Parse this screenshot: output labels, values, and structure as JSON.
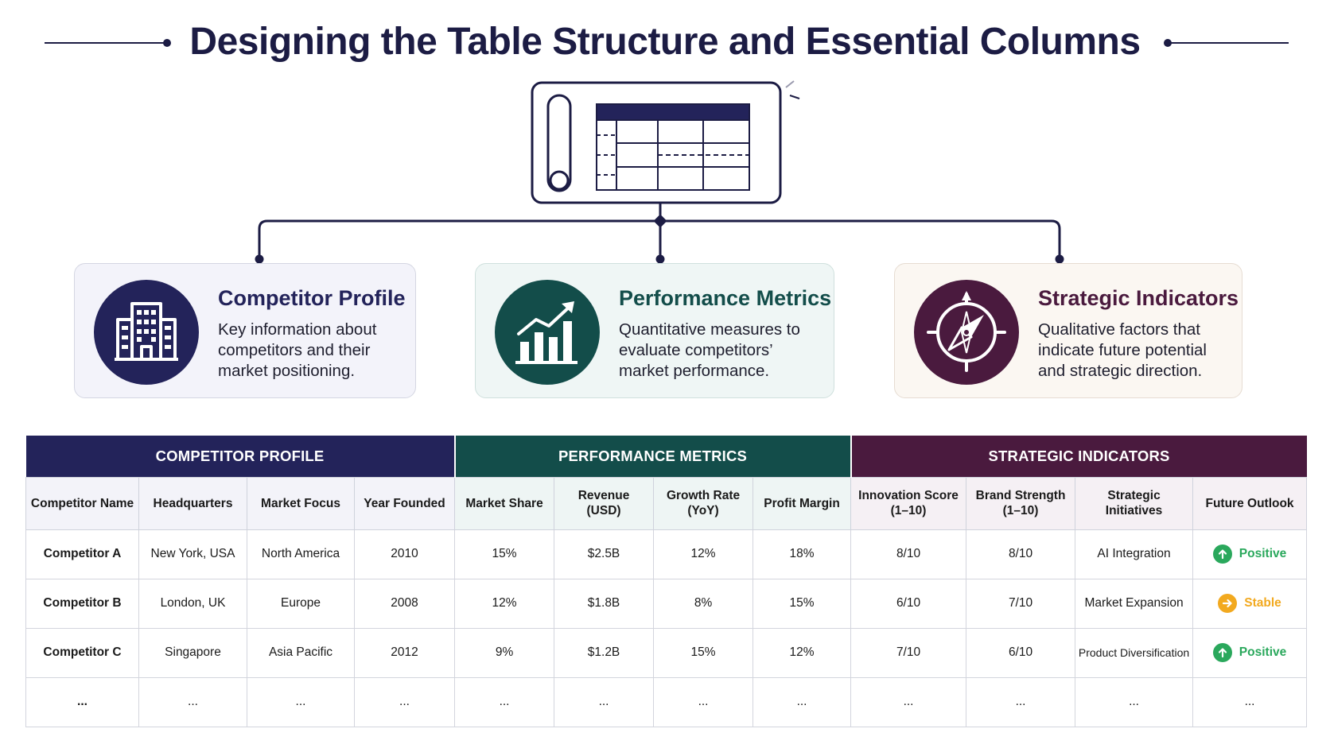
{
  "title": "Designing the Table Structure and Essential Columns",
  "colors": {
    "navy": "#23235a",
    "teal": "#134d4a",
    "plum": "#4a1a3e",
    "positive": "#2aa85c",
    "stable": "#f2a91f"
  },
  "categories": [
    {
      "title": "Competitor Profile",
      "description": "Key information about competitors and their market positioning.",
      "icon": "building-icon"
    },
    {
      "title": "Performance Metrics",
      "description": "Quantitative measures to evaluate competitors’ market performance.",
      "icon": "bar-chart-trend-icon"
    },
    {
      "title": "Strategic Indicators",
      "description": "Qualitative factors that indicate future potential and strategic direction.",
      "icon": "compass-icon"
    }
  ],
  "table": {
    "groups": [
      "COMPETITOR PROFILE",
      "PERFORMANCE METRICS",
      "STRATEGIC INDICATORS"
    ],
    "columns": [
      [
        "Competitor Name"
      ],
      [
        "Headquarters"
      ],
      [
        "Market Focus"
      ],
      [
        "Year Founded"
      ],
      [
        "Market Share"
      ],
      [
        "Revenue",
        "(USD)"
      ],
      [
        "Growth Rate",
        "(YoY)"
      ],
      [
        "Profit Margin"
      ],
      [
        "Innovation Score",
        "(1–10)"
      ],
      [
        "Brand Strength",
        "(1–10)"
      ],
      [
        "Strategic",
        "Initiatives"
      ],
      [
        "Future Outlook"
      ]
    ],
    "rows": [
      [
        "Competitor A",
        "New York, USA",
        "North America",
        "2010",
        "15%",
        "$2.5B",
        "12%",
        "18%",
        "8/10",
        "8/10",
        "AI Integration",
        "Positive"
      ],
      [
        "Competitor B",
        "London, UK",
        "Europe",
        "2008",
        "12%",
        "$1.8B",
        "8%",
        "15%",
        "6/10",
        "7/10",
        "Market Expansion",
        "Stable"
      ],
      [
        "Competitor C",
        "Singapore",
        "Asia Pacific",
        "2012",
        "9%",
        "$1.2B",
        "15%",
        "12%",
        "7/10",
        "6/10",
        "Product Diversification",
        "Positive"
      ],
      [
        "...",
        "...",
        "...",
        "...",
        "...",
        "...",
        "...",
        "...",
        "...",
        "...",
        "...",
        "..."
      ]
    ],
    "outlook_icons": {
      "Positive": "arrow-up-circle-icon",
      "Stable": "arrow-right-circle-icon"
    }
  }
}
